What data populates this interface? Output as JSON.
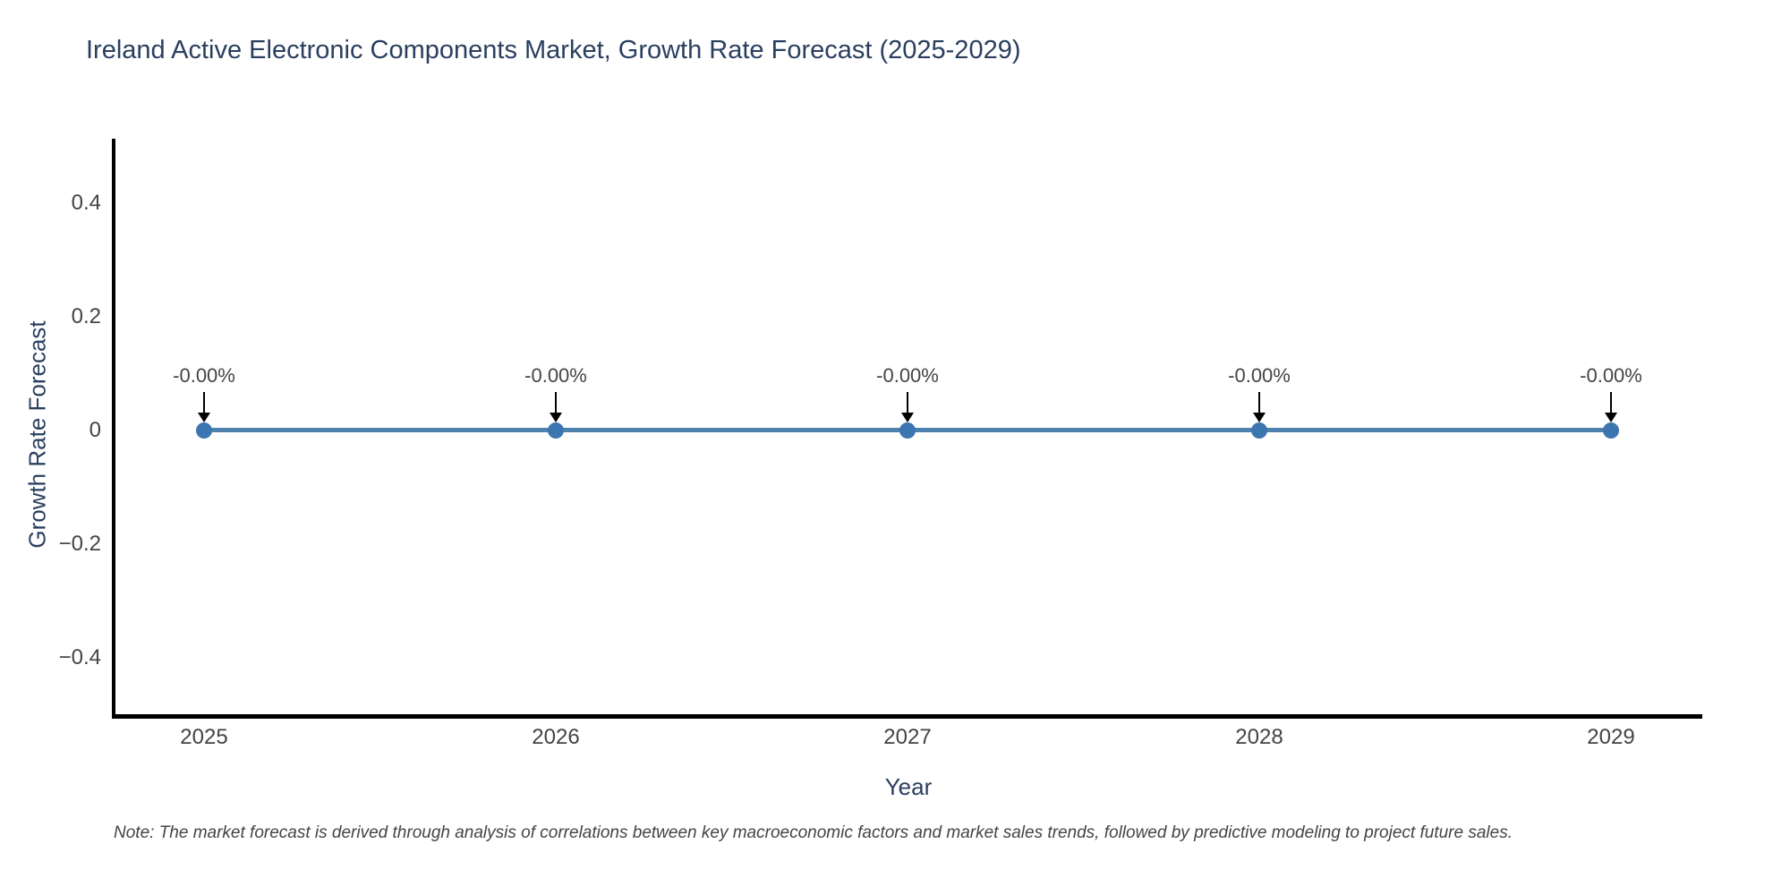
{
  "title": "Ireland Active Electronic Components Market, Growth Rate Forecast (2025-2029)",
  "note": "Note: The market forecast is derived through analysis of correlations between key macroeconomic factors and market sales trends, followed by predictive modeling to project future sales.",
  "chart_data": {
    "type": "line",
    "title": "Ireland Active Electronic Components Market, Growth Rate Forecast (2025-2029)",
    "xlabel": "Year",
    "ylabel": "Growth Rate Forecast",
    "x": [
      2025,
      2026,
      2027,
      2028,
      2029
    ],
    "series": [
      {
        "name": "Growth Rate Forecast",
        "values": [
          0,
          0,
          0,
          0,
          0
        ]
      }
    ],
    "point_labels": [
      "-0.00%",
      "-0.00%",
      "-0.00%",
      "-0.00%",
      "-0.00%"
    ],
    "xticks": [
      "2025",
      "2026",
      "2027",
      "2028",
      "2029"
    ],
    "yticks": [
      "0.4",
      "0.2",
      "0",
      "−0.2",
      "−0.4"
    ],
    "ytick_values": [
      0.4,
      0.2,
      0,
      -0.2,
      -0.4
    ],
    "ylim": [
      -0.51,
      0.51
    ],
    "grid": false,
    "legend": false,
    "line_color": "#4e81ad",
    "marker_color": "#3c76b0",
    "annotation_arrow_color": "#000000",
    "axis_color": "#000000"
  }
}
